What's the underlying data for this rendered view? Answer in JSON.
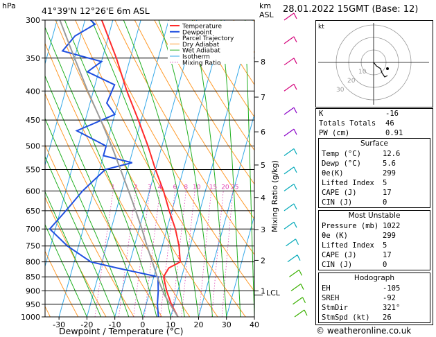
{
  "header": {
    "pressure_unit": "hPa",
    "location": "41°39'N  12°26'E  6m  ASL",
    "km_label": "km",
    "asl_label": "ASL",
    "datetime": "28.01.2022  15GMT  (Base: 12)"
  },
  "hodograph": {
    "unit_label": "kt",
    "ring_labels": [
      "10",
      "20",
      "30"
    ]
  },
  "indices": {
    "rows": [
      {
        "label": "K",
        "value": "-16"
      },
      {
        "label": "Totals Totals",
        "value": "46"
      },
      {
        "label": "PW (cm)",
        "value": "0.91"
      }
    ]
  },
  "surface": {
    "title": "Surface",
    "rows": [
      {
        "label": "Temp (°C)",
        "value": "12.6"
      },
      {
        "label": "Dewp (°C)",
        "value": "5.6"
      },
      {
        "label": "θe(K)",
        "value": "299"
      },
      {
        "label": "Lifted Index",
        "value": "5"
      },
      {
        "label": "CAPE (J)",
        "value": "17"
      },
      {
        "label": "CIN (J)",
        "value": "0"
      }
    ]
  },
  "most_unstable": {
    "title": "Most Unstable",
    "rows": [
      {
        "label": "Pressure (mb)",
        "value": "1022"
      },
      {
        "label": "θe (K)",
        "value": "299"
      },
      {
        "label": "Lifted Index",
        "value": "5"
      },
      {
        "label": "CAPE (J)",
        "value": "17"
      },
      {
        "label": "CIN (J)",
        "value": "0"
      }
    ]
  },
  "hodo_table": {
    "title": "Hodograph",
    "rows": [
      {
        "label": "EH",
        "value": "-105"
      },
      {
        "label": "SREH",
        "value": "-92"
      },
      {
        "label": "StmDir",
        "value": "321°"
      },
      {
        "label": "StmSpd (kt)",
        "value": "26"
      }
    ]
  },
  "copyright": "© weatheronline.co.uk",
  "colors": {
    "temperature": "#ff2a2a",
    "dewpoint": "#1f4fe0",
    "parcel": "#9a9a9a",
    "dry_adiabat": "#ff9a2a",
    "wet_adiabat": "#22b022",
    "isotherm": "#33a8e8",
    "mixing_ratio": "#e040b0"
  },
  "chart_data": {
    "type": "line",
    "xlabel": "Dewpoint / Temperature (°C)",
    "ylabel": "Mixing Ratio (g/kg)",
    "x_ticks": [
      -30,
      -20,
      -10,
      0,
      10,
      20,
      30,
      40
    ],
    "xlim": [
      -35,
      40
    ],
    "pressure_ticks": [
      300,
      350,
      400,
      450,
      500,
      550,
      600,
      650,
      700,
      750,
      800,
      850,
      900,
      950,
      1000
    ],
    "ylim_hpa": [
      1000,
      300
    ],
    "km_ticks": [
      {
        "label": "8",
        "p": 355
      },
      {
        "label": "7",
        "p": 410
      },
      {
        "label": "6",
        "p": 472
      },
      {
        "label": "5",
        "p": 540
      },
      {
        "label": "4",
        "p": 616
      },
      {
        "label": "3",
        "p": 702
      },
      {
        "label": "2",
        "p": 795
      },
      {
        "label": "1",
        "p": 900
      }
    ],
    "lcl_label": "LCL",
    "lcl_hpa": 915,
    "mixing_ratio_labels": [
      "1",
      "2",
      "3",
      "4",
      "6",
      "8",
      "10",
      "15",
      "20",
      "25"
    ],
    "mixing_ratio_values": [
      1,
      2,
      3,
      4,
      6,
      8,
      10,
      15,
      20,
      25
    ],
    "legend": [
      "Temperature",
      "Dewpoint",
      "Parcel Trajectory",
      "Dry Adiabat",
      "Wet Adiabat",
      "Isotherm",
      "Mixing Ratio"
    ],
    "series": [
      {
        "name": "Temperature",
        "points": [
          [
            1000,
            12.6
          ],
          [
            950,
            9
          ],
          [
            900,
            6
          ],
          [
            850,
            3.5
          ],
          [
            820,
            4.5
          ],
          [
            800,
            8
          ],
          [
            750,
            6
          ],
          [
            700,
            3
          ],
          [
            650,
            -1
          ],
          [
            600,
            -5
          ],
          [
            550,
            -10
          ],
          [
            500,
            -15
          ],
          [
            450,
            -21
          ],
          [
            400,
            -28
          ],
          [
            350,
            -35
          ],
          [
            300,
            -44
          ]
        ]
      },
      {
        "name": "Dewpoint",
        "points": [
          [
            1000,
            5.6
          ],
          [
            950,
            4
          ],
          [
            900,
            3
          ],
          [
            850,
            1.5
          ],
          [
            820,
            -14
          ],
          [
            800,
            -24
          ],
          [
            750,
            -34
          ],
          [
            700,
            -42
          ],
          [
            650,
            -38
          ],
          [
            600,
            -34
          ],
          [
            550,
            -28
          ],
          [
            535,
            -19
          ],
          [
            520,
            -30
          ],
          [
            500,
            -30
          ],
          [
            470,
            -42
          ],
          [
            440,
            -30
          ],
          [
            420,
            -34
          ],
          [
            390,
            -33
          ],
          [
            370,
            -44
          ],
          [
            355,
            -40
          ],
          [
            340,
            -55
          ],
          [
            320,
            -52
          ],
          [
            305,
            -46
          ],
          [
            300,
            -48
          ]
        ]
      },
      {
        "name": "Parcel Trajectory",
        "points": [
          [
            1000,
            12.6
          ],
          [
            915,
            5.6
          ],
          [
            850,
            1.2
          ],
          [
            800,
            -2
          ],
          [
            750,
            -5.5
          ],
          [
            700,
            -9
          ],
          [
            650,
            -13
          ],
          [
            600,
            -17.5
          ],
          [
            550,
            -22.5
          ],
          [
            500,
            -28
          ],
          [
            450,
            -34.5
          ],
          [
            400,
            -42
          ],
          [
            350,
            -50
          ],
          [
            300,
            -59
          ]
        ]
      }
    ]
  }
}
